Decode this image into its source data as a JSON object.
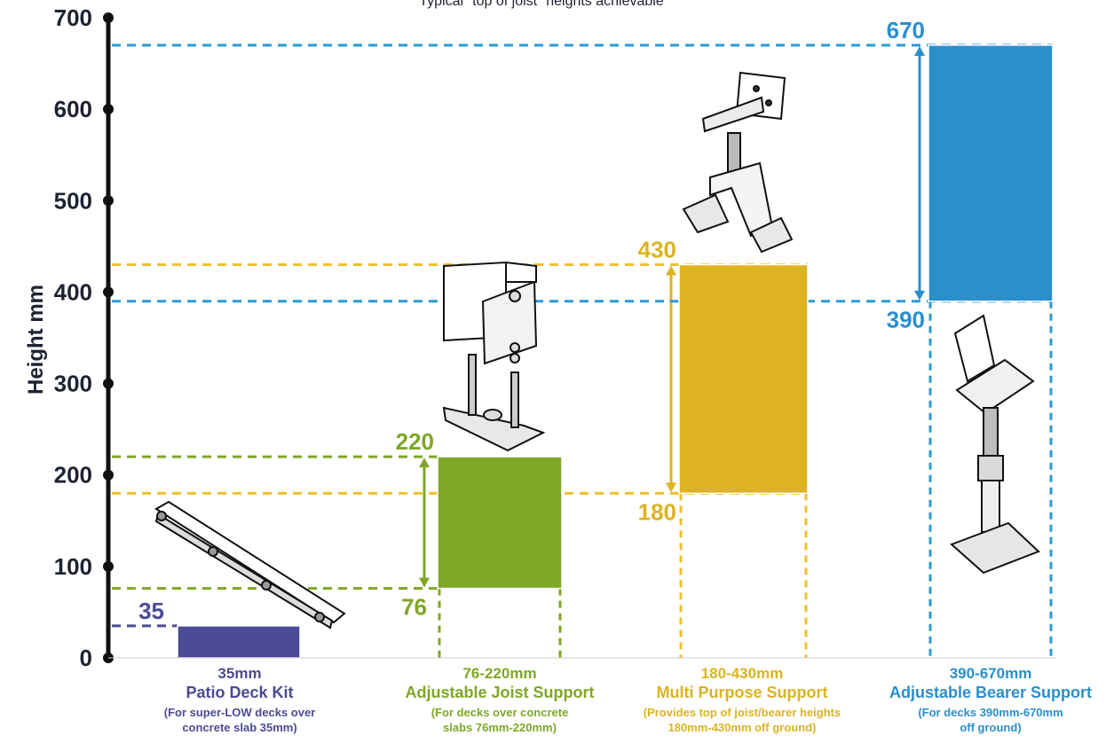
{
  "chart_data": {
    "type": "bar",
    "title": "Typical \"top of joist\" heights achievable",
    "ylabel": "Height mm",
    "ylim": [
      0,
      700
    ],
    "yticks": [
      "0",
      "100",
      "200",
      "300",
      "400",
      "500",
      "600",
      "700"
    ],
    "series": [
      {
        "name": "Patio Deck Kit",
        "low": 0,
        "high": 35,
        "label_high": "35",
        "label_low": "",
        "caption_range": "35mm",
        "caption_name": "Patio Deck Kit",
        "caption_desc": [
          "(For super-LOW decks over",
          "concrete slab 35mm)"
        ],
        "color": "#4b4a95"
      },
      {
        "name": "Adjustable Joist Support",
        "low": 76,
        "high": 220,
        "label_high": "220",
        "label_low": "76",
        "caption_range": "76-220mm",
        "caption_name": "Adjustable Joist Support",
        "caption_desc": [
          "(For decks over concrete",
          "slabs 76mm-220mm)"
        ],
        "color": "#7ea726"
      },
      {
        "name": "Multi Purpose Support",
        "low": 180,
        "high": 430,
        "label_high": "430",
        "label_low": "180",
        "caption_range": "180-430mm",
        "caption_name": "Multi Purpose Support",
        "caption_desc": [
          "(Provides top of joist/bearer heights",
          "180mm-430mm off ground)"
        ],
        "color": "#ddb321"
      },
      {
        "name": "Adjustable Bearer Support",
        "low": 390,
        "high": 670,
        "label_high": "670",
        "label_low": "390",
        "caption_range": "390-670mm",
        "caption_name": "Adjustable Bearer Support",
        "caption_desc": [
          "(For decks 390mm-670mm",
          "off ground)"
        ],
        "color": "#2b8fcb"
      }
    ],
    "colors": {
      "axis": "#111111",
      "tick_text": "#1e2233",
      "guide_patio": "#4b4a95",
      "guide_joist": "#7ea726",
      "guide_multi": "#f0c02e",
      "guide_bearer": "#2b9ad6"
    },
    "illustrations": [
      "patio-deck-kit-icon",
      "adjustable-joist-support-icon",
      "multi-purpose-support-icon",
      "adjustable-bearer-support-icon"
    ]
  }
}
